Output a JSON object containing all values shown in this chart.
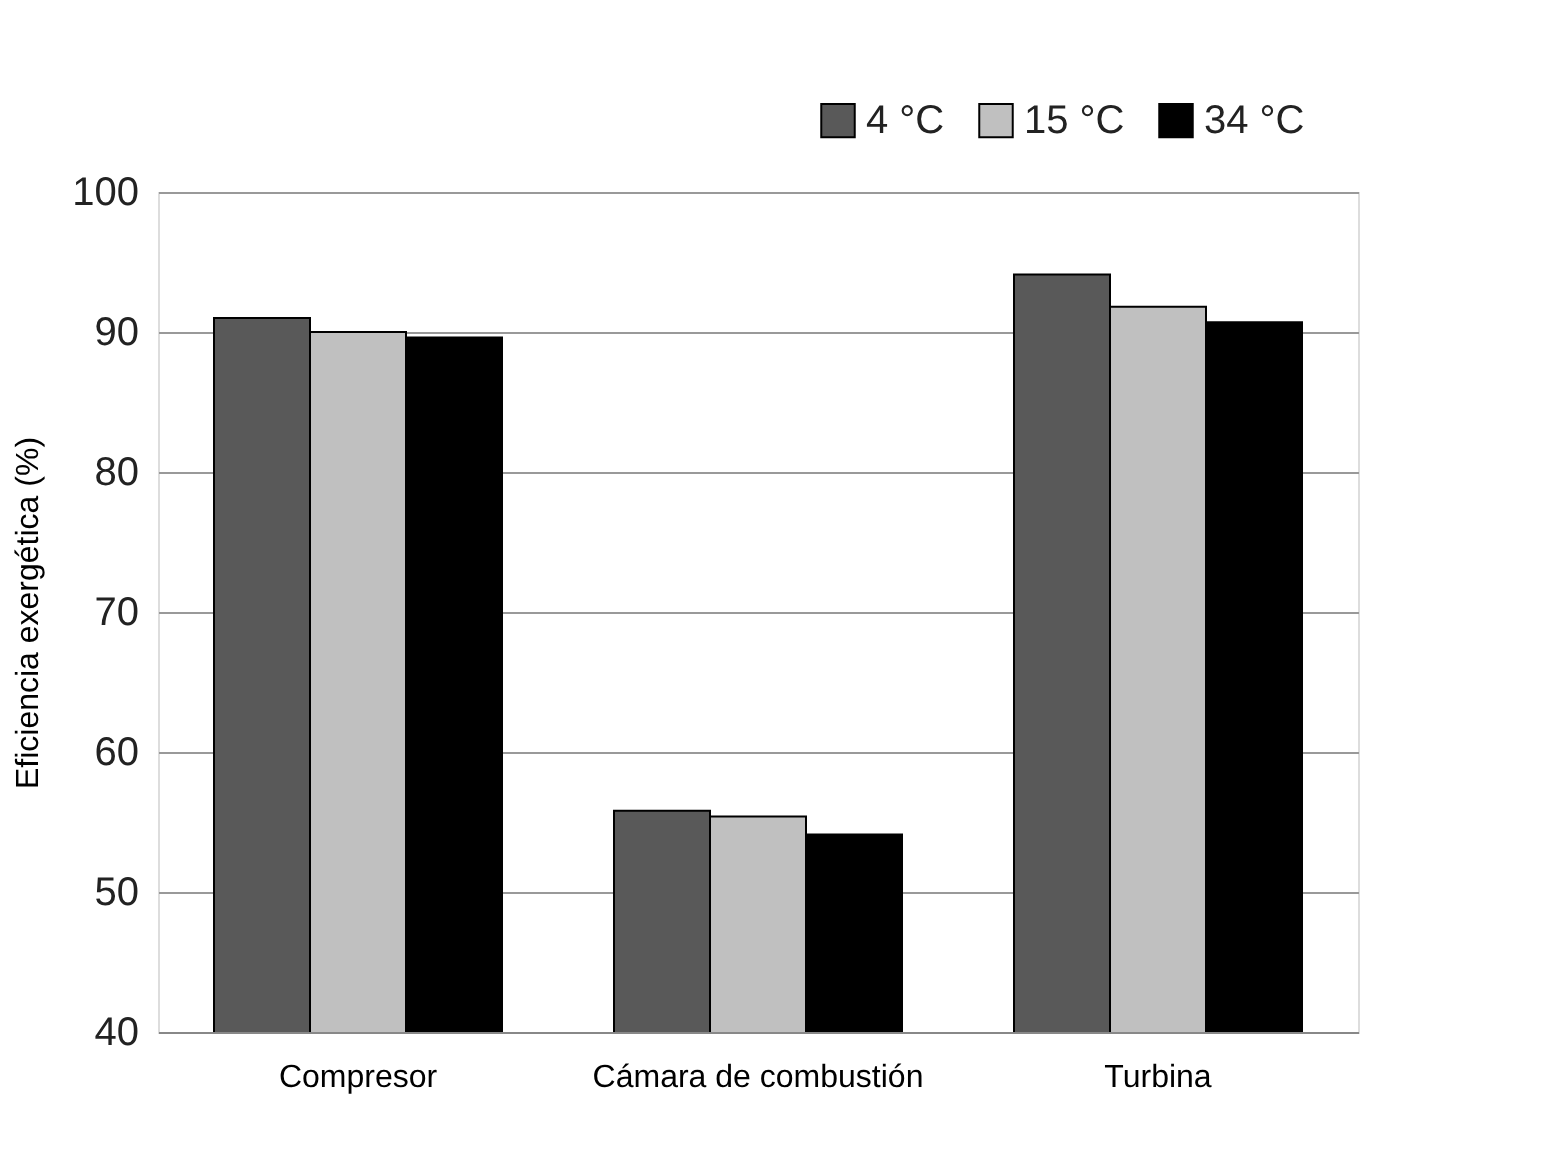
{
  "chart_data": {
    "type": "bar",
    "ylabel": "Eficiencia exergética (%)",
    "categories": [
      "Compresor",
      "Cámara de combustión",
      "Turbina"
    ],
    "series": [
      {
        "name": "4 °C",
        "color": "#595959",
        "values": [
          91.0,
          55.8,
          94.1
        ]
      },
      {
        "name": "15 °C",
        "color": "#c0c0c0",
        "values": [
          90.0,
          55.4,
          91.8
        ]
      },
      {
        "name": "34 °C",
        "color": "#000000",
        "values": [
          89.6,
          54.1,
          90.7
        ]
      }
    ],
    "ylim": [
      40,
      100
    ],
    "yticks": [
      40,
      50,
      60,
      70,
      80,
      90,
      100
    ],
    "grid": "y",
    "legend": "top right"
  }
}
